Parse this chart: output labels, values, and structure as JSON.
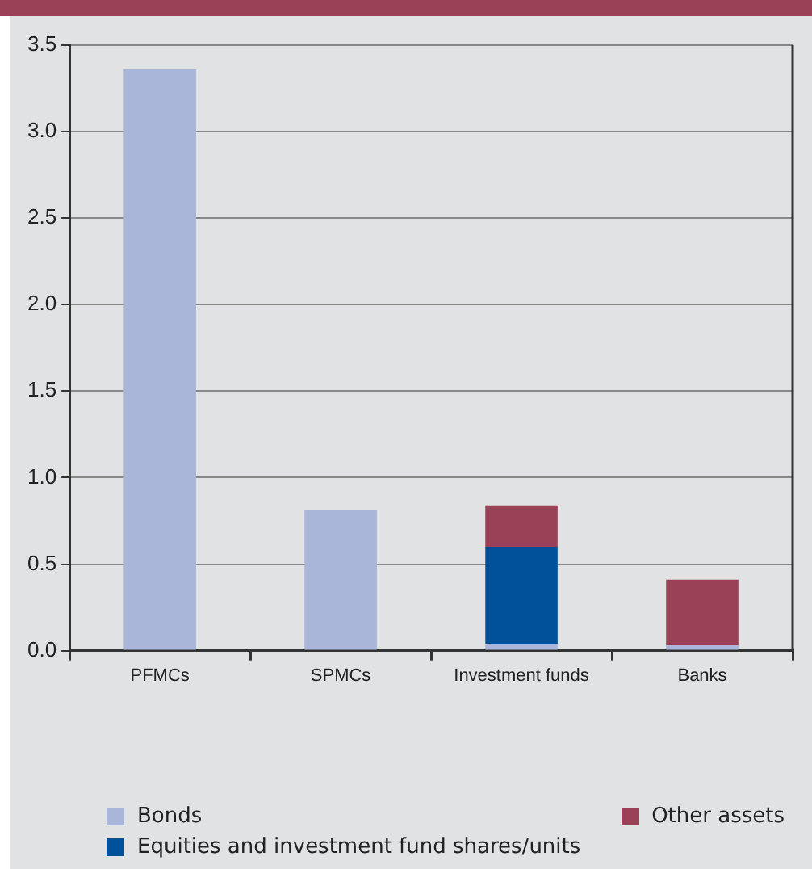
{
  "chart_data": {
    "type": "bar",
    "stacked": true,
    "categories": [
      "PFMCs",
      "SPMCs",
      "Investment funds",
      "Banks"
    ],
    "series": [
      {
        "name": "Bonds",
        "color": "#a9b6da",
        "values": [
          3.36,
          0.81,
          0.04,
          0.03
        ]
      },
      {
        "name": "Equities and investment fund shares/units",
        "color": "#00509a",
        "values": [
          0,
          0,
          0.56,
          0
        ]
      },
      {
        "name": "Other assets",
        "color": "#9a4057",
        "values": [
          0,
          0,
          0.24,
          0.38
        ]
      }
    ],
    "ylim": [
      0,
      3.5
    ],
    "yticks": [
      {
        "value": 0,
        "label": "0.0"
      },
      {
        "value": 0.5,
        "label": "0.5"
      },
      {
        "value": 1,
        "label": "1.0"
      },
      {
        "value": 1.5,
        "label": "1.5"
      },
      {
        "value": 2,
        "label": "2.0"
      },
      {
        "value": 2.5,
        "label": "2.5"
      },
      {
        "value": 3,
        "label": "3.0"
      },
      {
        "value": 3.5,
        "label": "3.5"
      }
    ],
    "grid": "y",
    "legend": "bottom"
  }
}
